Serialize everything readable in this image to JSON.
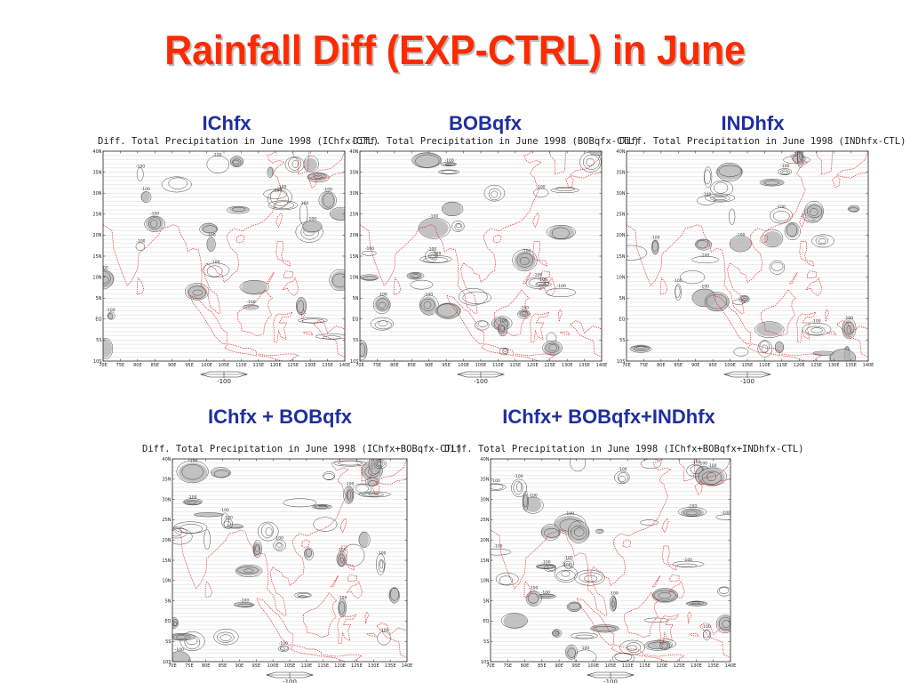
{
  "slide": {
    "title": "Rainfall Diff (EXP-CTRL) in June"
  },
  "map_axes": {
    "lon_labels": [
      "70E",
      "75E",
      "80E",
      "85E",
      "90E",
      "95E",
      "100E",
      "105E",
      "110E",
      "115E",
      "120E",
      "125E",
      "130E",
      "135E",
      "140E"
    ],
    "lat_labels": [
      "40N",
      "35N",
      "30N",
      "25N",
      "20N",
      "15N",
      "10N",
      "5N",
      "EQ",
      "5S",
      "10S"
    ]
  },
  "contour_label": "-100",
  "legend_value": "-100",
  "colors": {
    "title": "#ff2a00",
    "heading": "#1f2f9c",
    "coastline": "#e02020",
    "shading": "#b8b8b8",
    "contour": "#444444",
    "gridline": "#d9d9d9"
  },
  "panels": [
    {
      "heading": "IChfx",
      "plot_title": "Diff. Total Precipitation in June 1998 (IChfx-CTL)"
    },
    {
      "heading": "BOBqfx",
      "plot_title": "Diff. Total Precipitation in June 1998 (BOBqfx-CTL)"
    },
    {
      "heading": "INDhfx",
      "plot_title": "Diff. Total Precipitation in June 1998 (INDhfx-CTL)"
    },
    {
      "heading": "IChfx + BOBqfx",
      "plot_title": "Diff. Total Precipitation in June 1998 (IChfx+BOBqfx-CTL)"
    },
    {
      "heading": "IChfx+ BOBqfx+INDhfx",
      "plot_title": "Diff. Total Precipitation in June 1998 (IChfx+BOBqfx+INDhfx-CTL)"
    }
  ]
}
